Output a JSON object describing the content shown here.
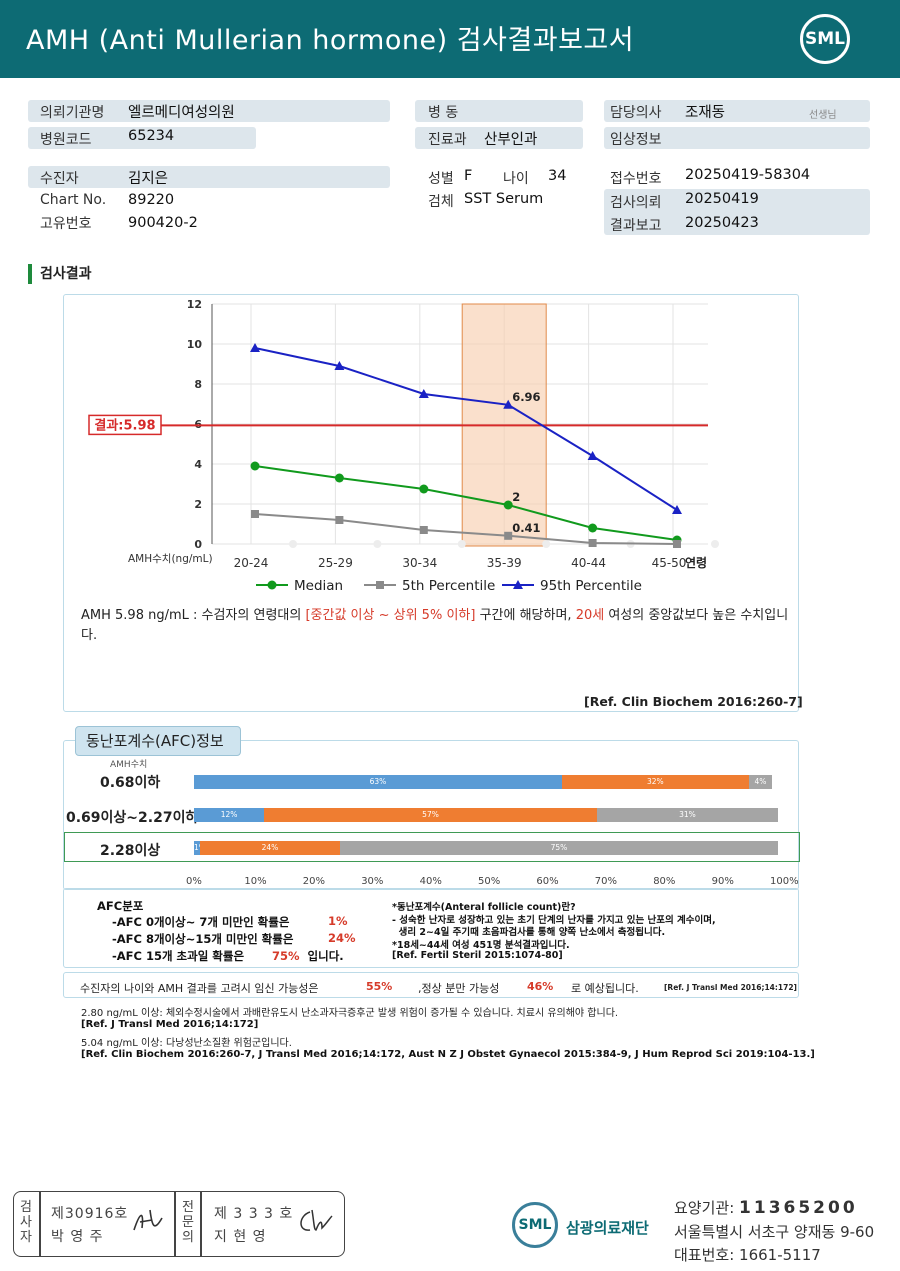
{
  "header": {
    "title": "AMH  (Anti  Mullerian  hormone) 검사결과보고서",
    "logo": "SML"
  },
  "info": {
    "institution_label": "의뢰기관명",
    "institution": "엘르메디여성의원",
    "hospital_code_label": "병원코드",
    "hospital_code": "65234",
    "ward_label": "병  동",
    "ward": "",
    "dept_label": "진료과",
    "dept": "산부인과",
    "doctor_label": "담당의사",
    "doctor": "조재동",
    "doctor_suffix": "선생님",
    "clinical_label": "임상정보",
    "clinical": "",
    "patient_label": "수진자",
    "patient": "김지은",
    "chart_label": "Chart No.",
    "chart": "89220",
    "uid_label": "고유번호",
    "uid": "900420-2",
    "sex_label": "성별",
    "sex": "F",
    "age_label": "나이",
    "age": "34",
    "specimen_label": "검체",
    "specimen": "SST Serum",
    "receipt_label": "접수번호",
    "receipt": "20250419-58304",
    "request_label": "검사의뢰",
    "request": "20250419",
    "report_label": "결과보고",
    "report": "20250423"
  },
  "section_title": "검사결과",
  "chart_data": {
    "type": "line",
    "categories": [
      "20-24",
      "25-29",
      "30-34",
      "35-39",
      "40-44",
      "45-50"
    ],
    "xlabel": "연령",
    "ylabel": "AMH수치(ng/mL)",
    "ylim": [
      0,
      12
    ],
    "yticks": [
      0,
      2,
      4,
      6,
      8,
      10,
      12
    ],
    "series": [
      {
        "name": "Median",
        "color": "#119a1d",
        "marker": "circle",
        "values": [
          3.9,
          3.3,
          2.75,
          1.95,
          0.8,
          0.2
        ]
      },
      {
        "name": "5th Percentile",
        "color": "#8a8a8a",
        "marker": "square",
        "values": [
          1.5,
          1.2,
          0.7,
          0.41,
          0.05,
          0.0
        ]
      },
      {
        "name": "95th Percentile",
        "color": "#1a22c4",
        "marker": "triangle",
        "values": [
          9.8,
          8.9,
          7.5,
          6.96,
          4.4,
          1.7
        ]
      }
    ],
    "annotations": [
      {
        "series": "95th Percentile",
        "category": "35-39",
        "text": "6.96"
      },
      {
        "series": "Median",
        "category": "35-39",
        "text": "2"
      },
      {
        "series": "5th Percentile",
        "category": "35-39",
        "text": "0.41"
      }
    ],
    "highlight_category": "35-39",
    "result_line": {
      "value": 5.98,
      "label": "결과:5.98",
      "color": "#d62a2a"
    },
    "legend_placement": "bottom",
    "grid": true
  },
  "interpretation": {
    "part1": "AMH  5.98 ng/mL : 수검자의 연령대의 ",
    "highlight1": "[중간값 이상 ~ 상위 5% 이하]",
    "part2": " 구간에 해당하며, ",
    "highlight2": "20세",
    "part3": " 여성의 중앙값보다 높은 수치입니다.",
    "ref": "[Ref. Clin Biochem 2016:260-7]"
  },
  "afc": {
    "title": "동난포계수(AFC)정보",
    "sub": "AMH수치",
    "colors": [
      "#5a9bd5",
      "#ef7d31",
      "#a5a5a5"
    ],
    "rows": [
      {
        "label": "0.68이하",
        "values": [
          63,
          32,
          4
        ],
        "texts": [
          "63%",
          "32%",
          "4%"
        ]
      },
      {
        "label": "0.69이상~2.27이하",
        "values": [
          12,
          57,
          31
        ],
        "texts": [
          "12%",
          "57%",
          "31%"
        ]
      },
      {
        "label": "2.28이상",
        "values": [
          1,
          24,
          75
        ],
        "texts": [
          "1%",
          "24%",
          "75%"
        ]
      }
    ],
    "xticks": [
      "0%",
      "10%",
      "20%",
      "30%",
      "40%",
      "50%",
      "60%",
      "70%",
      "80%",
      "90%",
      "100%"
    ],
    "dist_title": "AFC분포",
    "dist": [
      {
        "text": "-AFC  0개이상~ 7개 미만인 확률은",
        "value": "1%"
      },
      {
        "text": "-AFC  8개이상~15개 미만인 확률은",
        "value": "24%"
      },
      {
        "text": "-AFC  15개 초과일 확률은",
        "value": "75%",
        "suffix": "입니다."
      }
    ],
    "notes": [
      "*동난포계수(Anteral follicle count)란?",
      "- 성숙한 난자로 성장하고 있는 초기 단계의 난자를 가지고 있는 난포의 계수이며,",
      "  생리 2~4일 주기때 초음파검사를 통해 양쪽 난소에서 측정됩니다.",
      "*18세~44세 여성 451명 분석결과입니다.",
      "[Ref. Fertil Steril 2015:1074-80]"
    ]
  },
  "possibility": {
    "a": "수진자의  나이와 AMH 결과를 고려시 임신 가능성은",
    "v1": "55%",
    "b": ",정상 분만 가능성",
    "v2": "46%",
    "c": "로 예상됩니다.",
    "ref": "[Ref. J Transl Med 2016;14:172]"
  },
  "footnotes": [
    "2.80  ng/mL  이상: 체외수정시술에서 과배란유도시 난소과자극증후군 발생 위험이 증가될 수 있습니다. 치료시 유의해야 합니다.",
    "[Ref. J Transl Med 2016;14:172]",
    "5.04  ng/mL  이상: 다낭성난소질환 위험군입니다.",
    "[Ref. Clin Biochem 2016:260-7, J Transl Med 2016;14:172, Aust N Z J Obstet Gynaecol 2015:384-9, J Hum Reprod Sci 2019:104-13.]"
  ],
  "signature": {
    "left_vertical": "검사자",
    "left_no": "제30916호",
    "left_name": "박  영  주",
    "right_vertical": "전문의",
    "right_no": "제 3 3 3 호",
    "right_name": "지  현  영"
  },
  "footer": {
    "logo": "SML",
    "org": "삼광의료재단",
    "code_label": "요양기관: ",
    "code": "11365200",
    "address": "서울특별시 서초구 양재동 9-60",
    "phone_label": "대표번호: ",
    "phone": "1661-5117"
  }
}
